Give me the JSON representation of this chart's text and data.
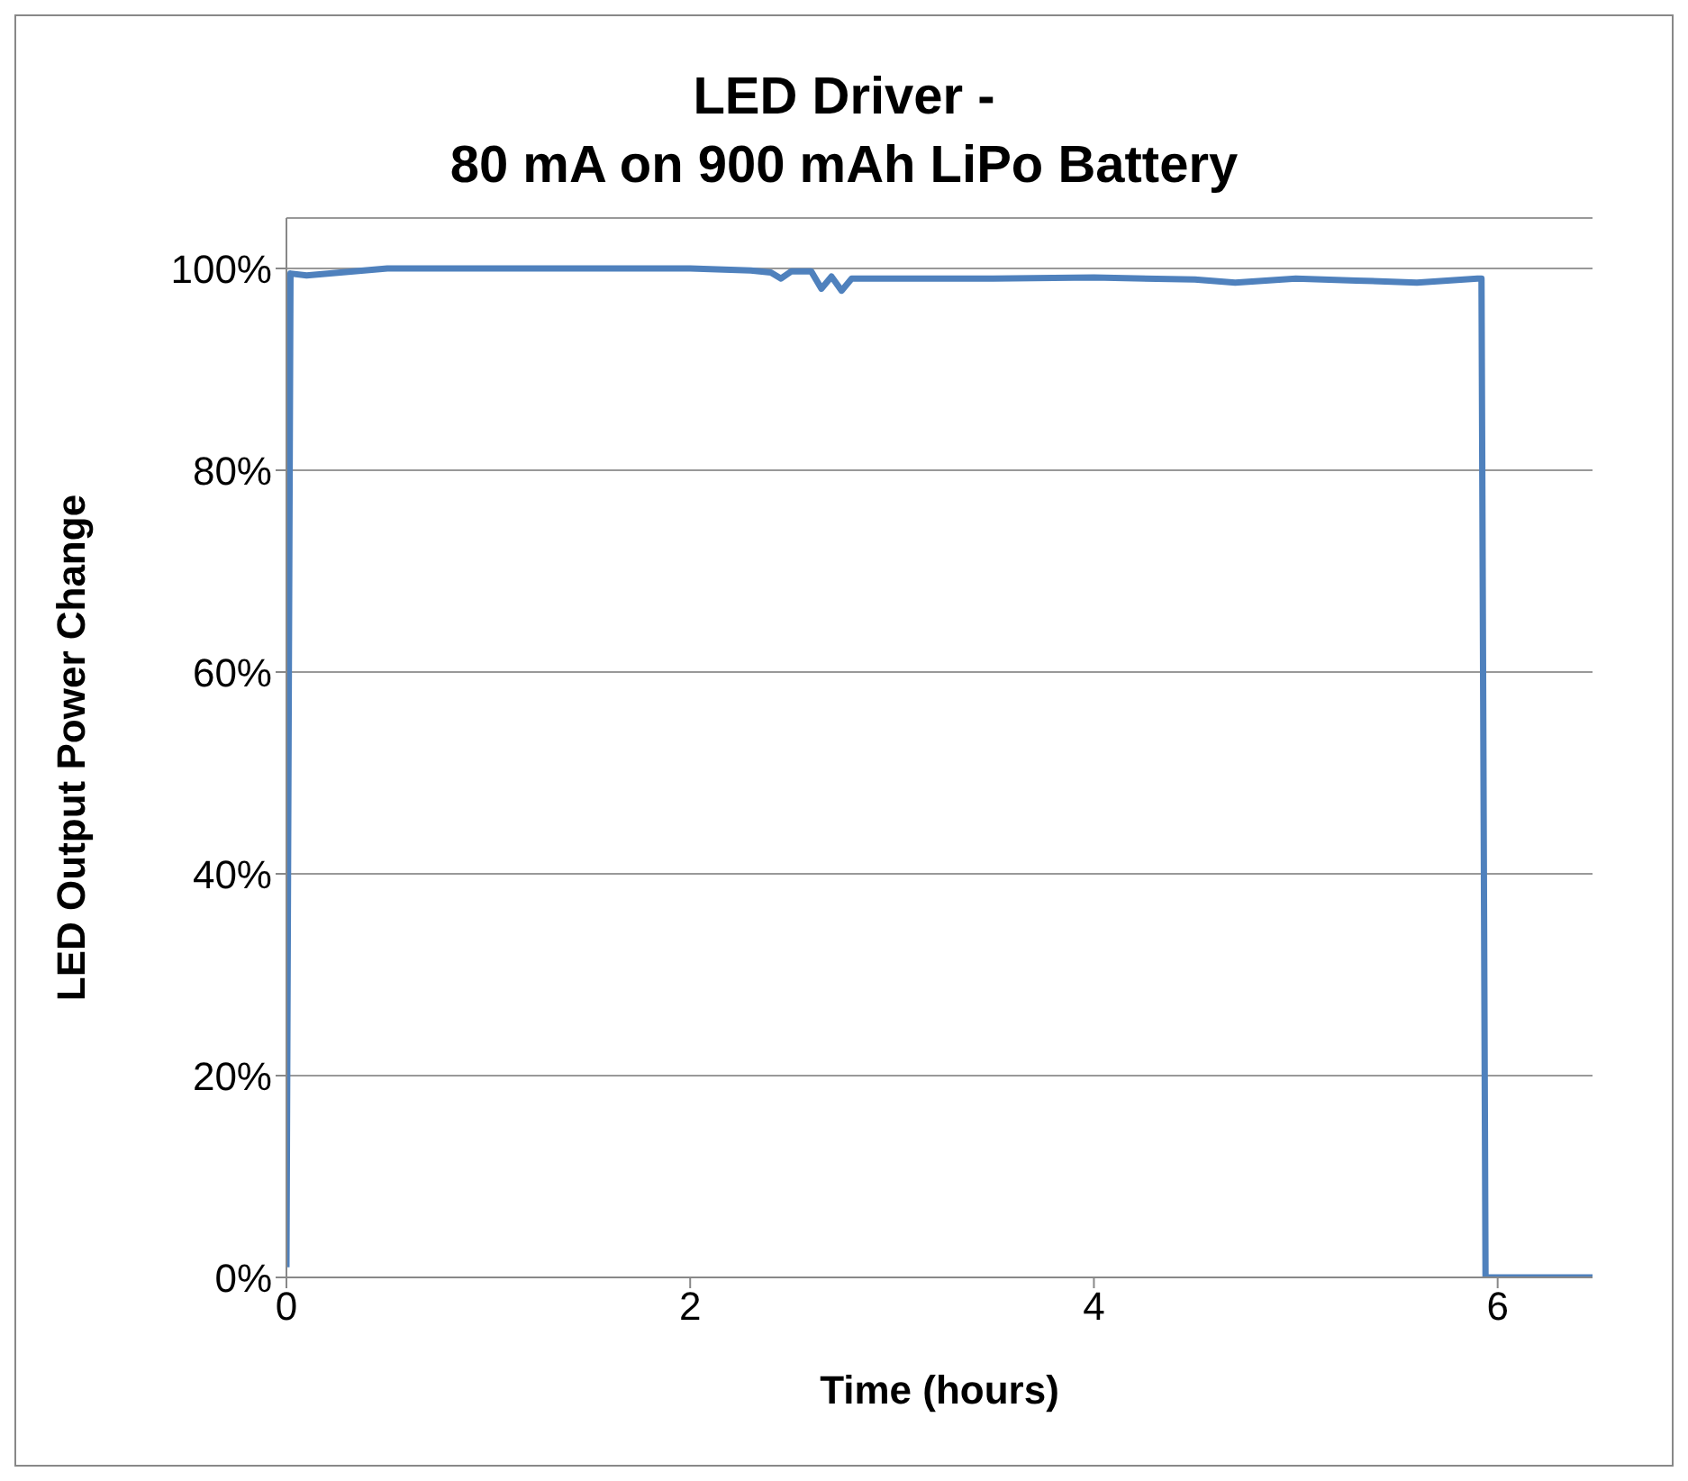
{
  "chart_data": {
    "type": "line",
    "title": "LED Driver -\n80 mA on 900 mAh LiPo Battery",
    "xlabel": "Time (hours)",
    "ylabel": "LED Output Power Change",
    "x": [
      0.0,
      0.02,
      0.1,
      0.5,
      1,
      1.5,
      2,
      2.3,
      2.4,
      2.45,
      2.5,
      2.6,
      2.65,
      2.7,
      2.75,
      2.8,
      3,
      3.5,
      4,
      4.5,
      4.7,
      5,
      5.3,
      5.6,
      5.9,
      5.92,
      5.94,
      6.47
    ],
    "series": [
      {
        "color": "#4f81bd",
        "values": [
          1,
          99.5,
          99.3,
          100,
          100,
          100,
          100,
          99.8,
          99.6,
          99,
          99.7,
          99.7,
          98,
          99.2,
          97.8,
          99,
          99,
          99,
          99.1,
          98.9,
          98.6,
          99,
          98.8,
          98.6,
          99,
          99,
          0,
          0
        ]
      }
    ],
    "xlim": [
      0,
      6.47
    ],
    "xticks": [
      0,
      2,
      4,
      6
    ],
    "ylim": [
      0,
      105
    ],
    "yticks": [
      {
        "value": 0,
        "label": "0%"
      },
      {
        "value": 20,
        "label": "20%"
      },
      {
        "value": 40,
        "label": "40%"
      },
      {
        "value": 60,
        "label": "60%"
      },
      {
        "value": 80,
        "label": "80%"
      },
      {
        "value": 100,
        "label": "100%"
      }
    ],
    "grid": "y",
    "legend": false,
    "marker": "none",
    "line_style": "solid"
  }
}
